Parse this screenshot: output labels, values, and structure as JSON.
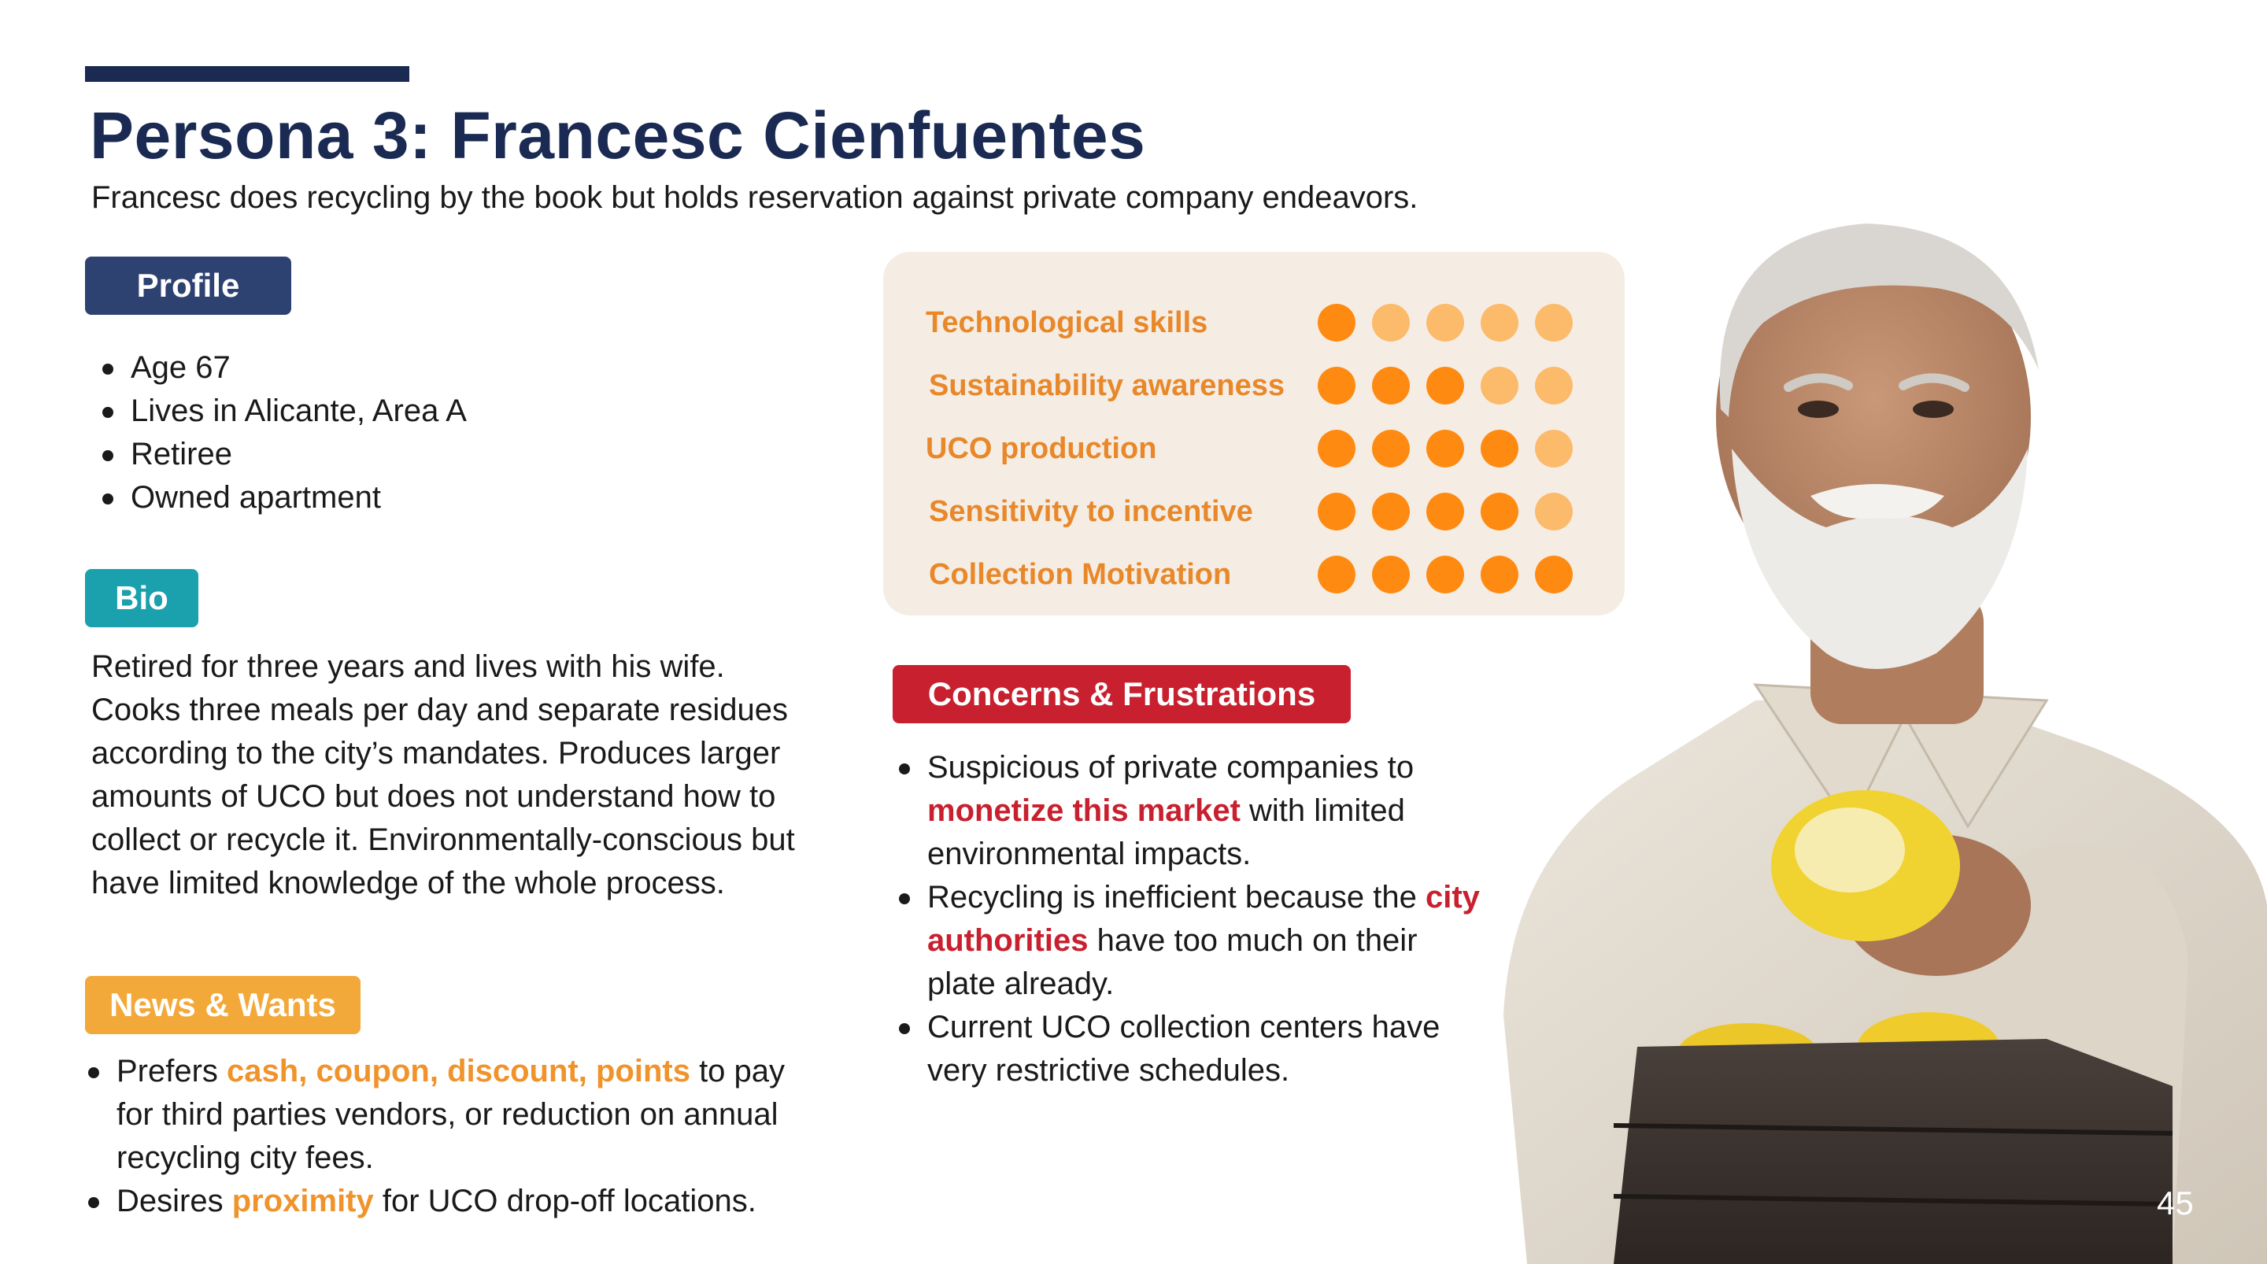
{
  "title": "Persona 3: Francesc Cienfuentes",
  "subtitle": "Francesc does recycling by the book but holds reservation against private company endeavors.",
  "profile": {
    "label": "Profile",
    "items": [
      "Age 67",
      "Lives  in Alicante, Area A",
      "Retiree",
      "Owned apartment"
    ]
  },
  "bio": {
    "label": "Bio",
    "text": "Retired for three years and lives with his wife. Cooks three meals per day and separate residues according to the city’s mandates. Produces larger amounts of UCO but does not understand how to collect or recycle it. Environmentally-conscious but have limited knowledge of the whole process."
  },
  "news": {
    "label": "News & Wants",
    "items": [
      {
        "pre": "Prefers ",
        "hl": "cash, coupon, discount, points",
        "post": " to pay for third parties vendors, or reduction on annual recycling city fees."
      },
      {
        "pre": "Desires ",
        "hl": "proximity",
        "post": " for UCO drop-off locations."
      }
    ]
  },
  "ratings": {
    "max": 5,
    "items": [
      {
        "label": "Technological skills",
        "value": 1
      },
      {
        "label": "Sustainability awareness",
        "value": 3
      },
      {
        "label": "UCO production",
        "value": 4
      },
      {
        "label": "Sensitivity to incentive",
        "value": 4
      },
      {
        "label": "Collection Motivation",
        "value": 5
      }
    ],
    "colors": {
      "filled": "#ff8a12",
      "empty": "#fcba6b"
    }
  },
  "concerns": {
    "label": "Concerns & Frustrations",
    "items": [
      {
        "pre": "Suspicious of private companies to ",
        "hl": "monetize this market",
        "post": " with limited environmental impacts."
      },
      {
        "pre": "Recycling is inefficient because the ",
        "hl": "city authorities",
        "post": " have too much on their plate already."
      },
      {
        "pre": "Current UCO collection centers have very restrictive schedules.",
        "hl": "",
        "post": ""
      }
    ]
  },
  "page_number": "45",
  "colors": {
    "navy": "#1a2a52",
    "teal": "#1ba0ad",
    "amber": "#f2a93a",
    "red": "#c8202e"
  }
}
